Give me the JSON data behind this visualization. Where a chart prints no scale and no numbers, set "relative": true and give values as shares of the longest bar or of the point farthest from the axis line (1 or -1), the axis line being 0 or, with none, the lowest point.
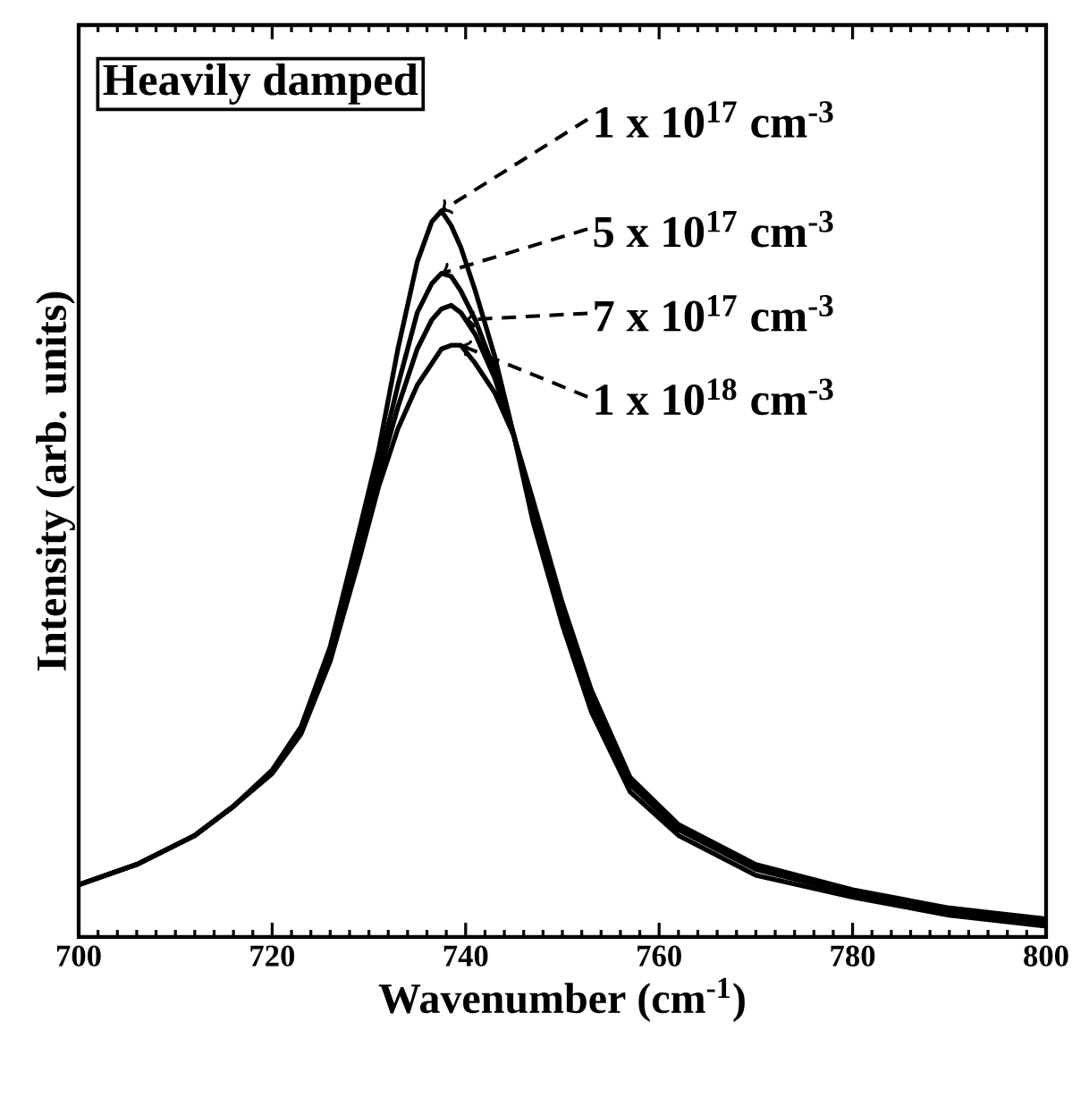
{
  "chart_data": {
    "type": "line",
    "relative": true,
    "xlabel": "Wavenumber (cm$^{-1}$)",
    "ylabel": "Intensity (arb. units)",
    "annotations": [
      "Heavily damped",
      {
        "text": "1 x 10$^{17}$ cm$^{-3}$",
        "x": 737.5,
        "y": 1.0
      },
      {
        "text": "5 x 10$^{17}$ cm$^{-3}$",
        "x": 737.5,
        "y": 0.914
      },
      {
        "text": "7 x 10$^{17}$ cm$^{-3}$",
        "x": 740,
        "y": 0.85
      },
      {
        "text": "1 x 10$^{18}$ cm$^{-3}$",
        "x": 739.5,
        "y": 0.815
      }
    ],
    "xlim": [
      700,
      800
    ],
    "xticks": [
      700,
      720,
      740,
      760,
      780,
      800
    ],
    "marker": "none",
    "line_style": "solid",
    "x": [
      700,
      706,
      712,
      716,
      720,
      723,
      726,
      729,
      731,
      733,
      735,
      736.5,
      737.5,
      738.5,
      739.5,
      741,
      743,
      745,
      747,
      750,
      753,
      757,
      762,
      770,
      780,
      790,
      800
    ],
    "series": [
      {
        "color": "#000000",
        "values": [
          0.072,
          0.1,
          0.14,
          0.18,
          0.23,
          0.29,
          0.4,
          0.56,
          0.67,
          0.81,
          0.93,
          0.985,
          1.0,
          0.98,
          0.95,
          0.89,
          0.8,
          0.69,
          0.57,
          0.43,
          0.31,
          0.2,
          0.14,
          0.085,
          0.055,
          0.03,
          0.015
        ]
      },
      {
        "color": "#000000",
        "values": [
          0.072,
          0.1,
          0.14,
          0.18,
          0.228,
          0.285,
          0.39,
          0.545,
          0.65,
          0.76,
          0.86,
          0.9,
          0.914,
          0.91,
          0.89,
          0.85,
          0.78,
          0.69,
          0.585,
          0.445,
          0.325,
          0.21,
          0.148,
          0.093,
          0.06,
          0.035,
          0.02
        ]
      },
      {
        "color": "#000000",
        "values": [
          0.072,
          0.1,
          0.14,
          0.18,
          0.226,
          0.283,
          0.385,
          0.53,
          0.635,
          0.73,
          0.81,
          0.85,
          0.865,
          0.87,
          0.86,
          0.83,
          0.77,
          0.69,
          0.59,
          0.45,
          0.33,
          0.215,
          0.15,
          0.097,
          0.063,
          0.038,
          0.023
        ]
      },
      {
        "color": "#000000",
        "values": [
          0.072,
          0.1,
          0.14,
          0.18,
          0.225,
          0.28,
          0.38,
          0.52,
          0.62,
          0.7,
          0.76,
          0.79,
          0.81,
          0.815,
          0.815,
          0.79,
          0.75,
          0.69,
          0.6,
          0.46,
          0.34,
          0.22,
          0.155,
          0.1,
          0.065,
          0.04,
          0.025
        ]
      }
    ]
  }
}
